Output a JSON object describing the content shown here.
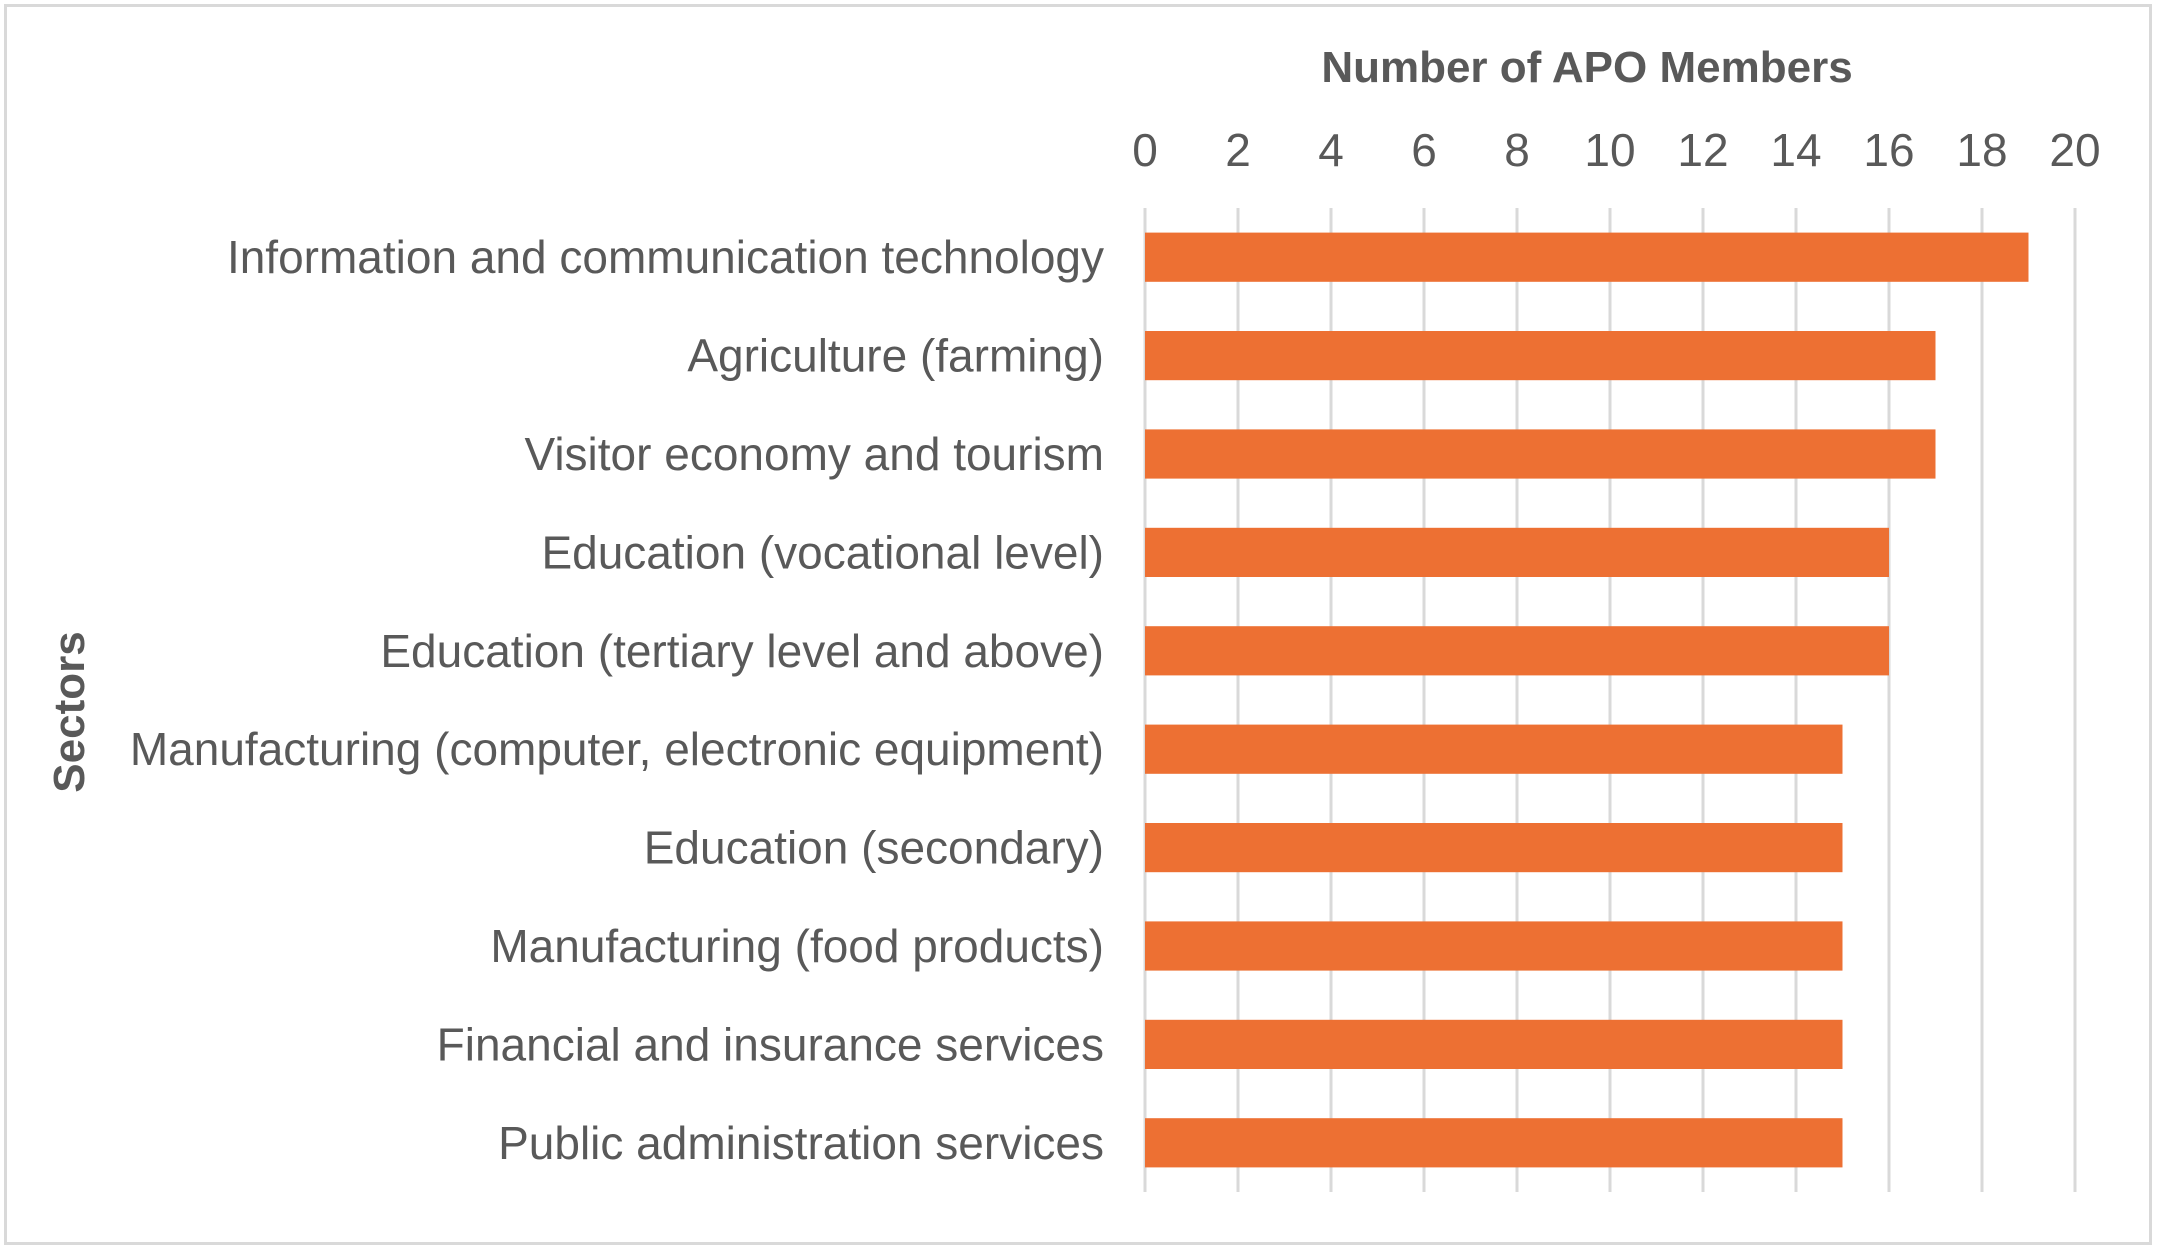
{
  "chart_data": {
    "type": "bar",
    "orientation": "horizontal",
    "xlabel": "Number of APO Members",
    "ylabel": "Sectors",
    "xlim": [
      0,
      20
    ],
    "x_ticks": [
      "0",
      "2",
      "4",
      "6",
      "8",
      "10",
      "12",
      "14",
      "16",
      "18",
      "20"
    ],
    "x_axis_position": "top",
    "grid": true,
    "legend": "none",
    "bar_color": "#ed7033",
    "categories": [
      "Information and communication technology",
      "Agriculture (farming)",
      "Visitor economy and tourism",
      "Education (vocational level)",
      "Education (tertiary level and above)",
      "Manufacturing (computer, electronic equipment)",
      "Education (secondary)",
      "Manufacturing (food products)",
      "Financial and insurance services",
      "Public administration services"
    ],
    "values": [
      19,
      17,
      17,
      16,
      16,
      15,
      15,
      15,
      15,
      15
    ]
  }
}
